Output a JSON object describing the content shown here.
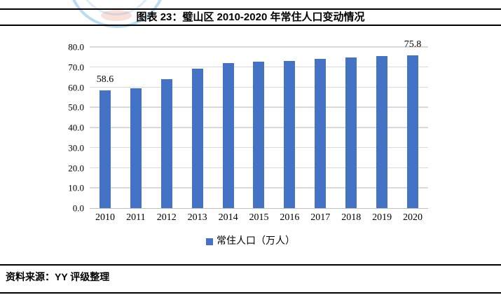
{
  "header": {
    "title": "图表 23：璧山区 2010-2020 年常住人口变动情况"
  },
  "footer": {
    "source": "资料来源：YY 评级整理"
  },
  "legend": {
    "marker_color": "#4472C4",
    "label": "常住人口（万人）"
  },
  "colors": {
    "bar": "#4472C4",
    "gridline": "#DADADA",
    "axis_line": "#BFBFBF",
    "rule": "#000000",
    "watermark_blue": "#7DC1E8",
    "watermark_orange": "#E1785A"
  },
  "chart_data": {
    "type": "bar",
    "title": "图表 23：璧山区 2010-2020 年常住人口变动情况",
    "categories": [
      "2010",
      "2011",
      "2012",
      "2013",
      "2014",
      "2015",
      "2016",
      "2017",
      "2018",
      "2019",
      "2020"
    ],
    "values": [
      58.6,
      59.6,
      64.1,
      69.3,
      72.1,
      72.6,
      73.0,
      74.0,
      74.8,
      75.4,
      75.8
    ],
    "series_name": "常住人口（万人）",
    "xlabel": "",
    "ylabel": "",
    "ylim": [
      0,
      80
    ],
    "yticks": [
      0,
      10,
      20,
      30,
      40,
      50,
      60,
      70,
      80
    ],
    "ytick_labels": [
      "0.0",
      "10.0",
      "20.0",
      "30.0",
      "40.0",
      "50.0",
      "60.0",
      "70.0",
      "80.0"
    ],
    "grid": true,
    "legend_position": "bottom",
    "data_labels": [
      {
        "category": "2010",
        "text": "58.6"
      },
      {
        "category": "2020",
        "text": "75.8"
      }
    ]
  }
}
